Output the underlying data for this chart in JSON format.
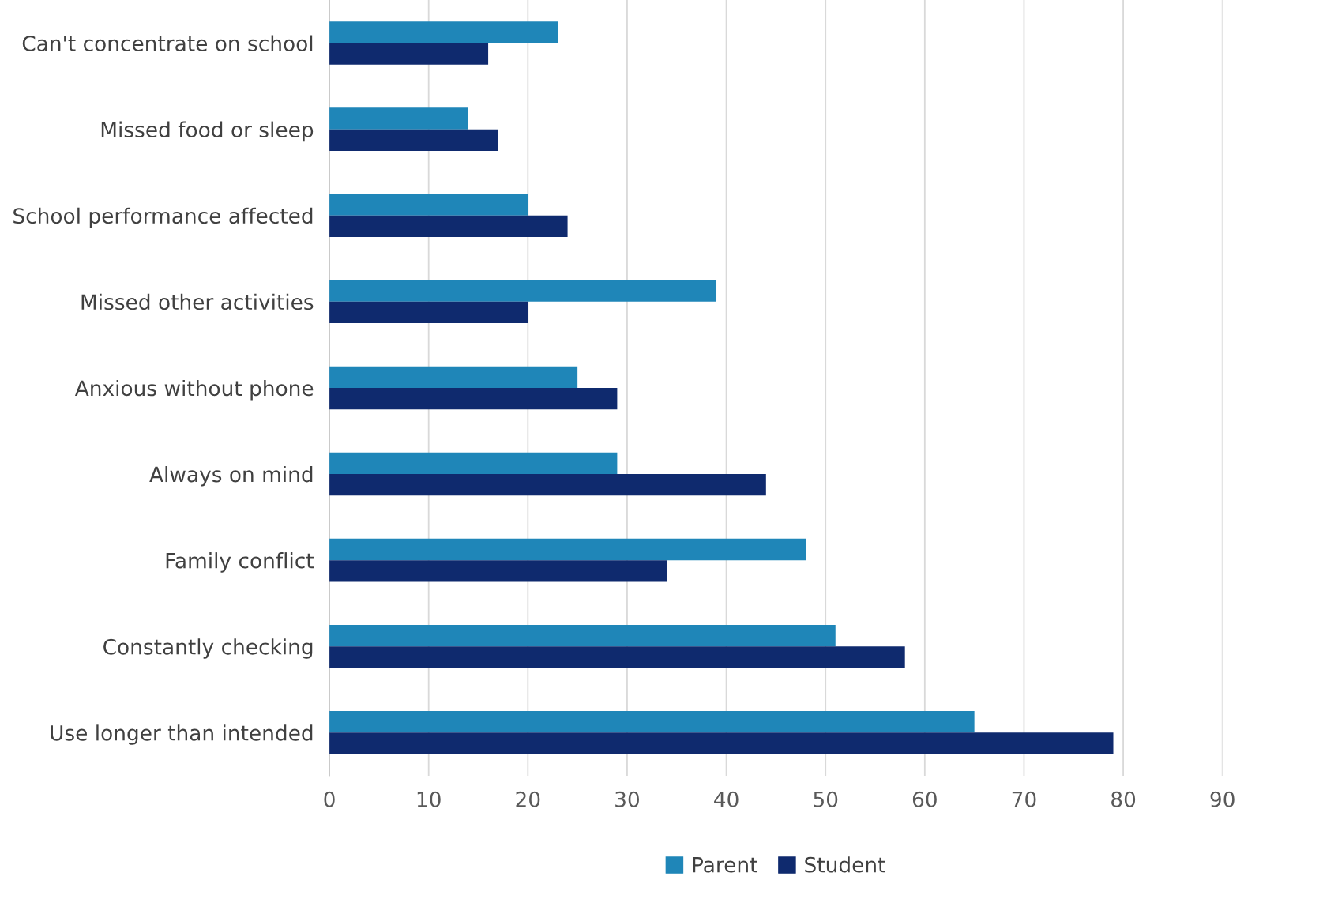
{
  "chart_data": {
    "type": "bar",
    "orientation": "horizontal",
    "categories": [
      "Can't concentrate on school",
      "Missed food or sleep",
      "School performance affected",
      "Missed other activities",
      "Anxious without phone",
      "Always on mind",
      "Family conflict",
      "Constantly checking",
      "Use longer than intended"
    ],
    "series": [
      {
        "name": "Parent",
        "color": "#1f86b8",
        "values": [
          23,
          14,
          20,
          39,
          25,
          29,
          48,
          51,
          65
        ]
      },
      {
        "name": "Student",
        "color": "#0f2a6e",
        "values": [
          16,
          17,
          24,
          20,
          29,
          44,
          34,
          58,
          79
        ]
      }
    ],
    "xlim": [
      0,
      90
    ],
    "xticks": [
      0,
      10,
      20,
      30,
      40,
      50,
      60,
      70,
      80,
      90
    ],
    "grid": "x",
    "legend": "bottom"
  }
}
